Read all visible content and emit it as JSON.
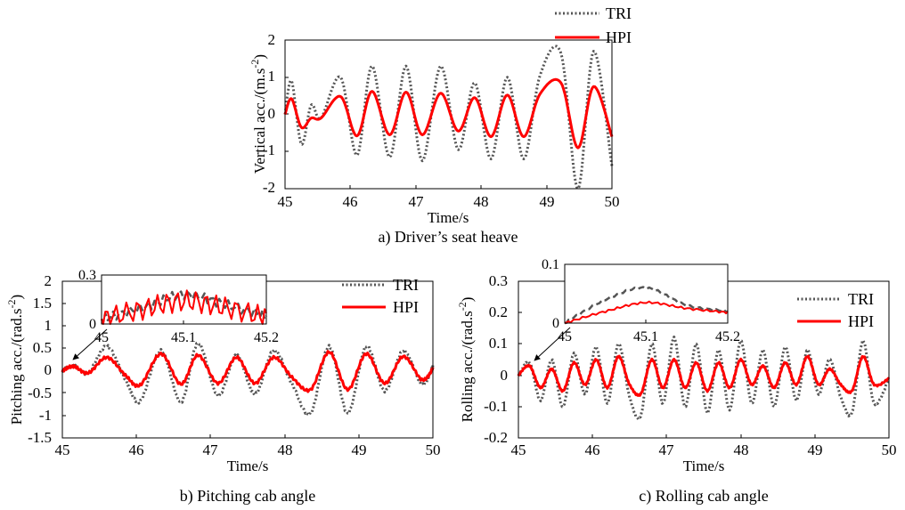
{
  "charts": [
    {
      "type": "line",
      "caption": "a) Driver’s seat heave",
      "xlabel": "Time/s",
      "ylabel": "Vertical acc./(m.s",
      "ylabel_sup": "-2",
      "ylabel_end": ")",
      "xlim": [
        45,
        50
      ],
      "ylim": [
        -2,
        2
      ],
      "xticks": [
        "45",
        "46",
        "47",
        "48",
        "49",
        "50"
      ],
      "yticks": [
        "-2",
        "-1",
        "0",
        "1",
        "2"
      ],
      "legend": [
        "TRI",
        "HPI"
      ],
      "legend_position": "above-top-right"
    },
    {
      "type": "line",
      "caption": "b) Pitching cab angle",
      "xlabel": "Time/s",
      "ylabel": "Pitching acc./(rad.s",
      "ylabel_sup": "-2",
      "ylabel_end": ")",
      "xlim": [
        45,
        50
      ],
      "ylim": [
        -1.5,
        2
      ],
      "xticks": [
        "45",
        "46",
        "47",
        "48",
        "49",
        "50"
      ],
      "yticks": [
        "-1.5",
        "-1",
        "-0.5",
        "0",
        "0.5",
        "1",
        "1.5",
        "2"
      ],
      "legend": [
        "TRI",
        "HPI"
      ],
      "legend_position": "top-right",
      "inset": {
        "xlim": [
          45,
          45.2
        ],
        "ylim": [
          0,
          0.3
        ],
        "xticks": [
          "45",
          "45.1",
          "45.2"
        ],
        "yticks": [
          "0",
          "0.3"
        ]
      }
    },
    {
      "type": "line",
      "caption": "c) Rolling cab angle",
      "xlabel": "Time/s",
      "ylabel": "Rolling acc./(rad.s",
      "ylabel_sup": "-2",
      "ylabel_end": ")",
      "xlim": [
        45,
        50
      ],
      "ylim": [
        -0.2,
        0.3
      ],
      "xticks": [
        "45",
        "46",
        "47",
        "48",
        "49",
        "50"
      ],
      "yticks": [
        "-0.2",
        "-0.1",
        "0",
        "0.1",
        "0.2",
        "0.3"
      ],
      "legend": [
        "TRI",
        "HPI"
      ],
      "legend_position": "top-right",
      "inset": {
        "xlim": [
          45,
          45.2
        ],
        "ylim": [
          0,
          0.1
        ],
        "xticks": [
          "45",
          "45.1",
          "45.2"
        ],
        "yticks": [
          "0",
          "0.1"
        ]
      }
    }
  ],
  "colors": {
    "tri": "#555555",
    "hpi": "#ff0000"
  },
  "chart_data": [
    {
      "type": "line",
      "title": "a) Driver’s seat heave",
      "xlabel": "Time/s",
      "ylabel": "Vertical acc./(m.s-2)",
      "xlim": [
        45,
        50
      ],
      "ylim": [
        -2,
        2
      ],
      "series": [
        {
          "name": "TRI",
          "style": "dotted",
          "x": [
            45.0,
            45.1,
            45.25,
            45.4,
            45.55,
            45.85,
            46.1,
            46.33,
            46.6,
            46.85,
            47.1,
            47.38,
            47.65,
            47.9,
            48.15,
            48.4,
            48.65,
            48.9,
            49.22,
            49.48,
            49.72,
            50.0
          ],
          "y": [
            0.0,
            0.9,
            -0.8,
            0.25,
            -0.1,
            1.0,
            -1.1,
            1.3,
            -1.15,
            1.3,
            -1.25,
            1.3,
            -0.95,
            0.85,
            -1.2,
            1.0,
            -1.2,
            1.05,
            1.65,
            -2.0,
            1.7,
            -1.4
          ]
        },
        {
          "name": "HPI",
          "style": "solid",
          "x": [
            45.0,
            45.1,
            45.25,
            45.4,
            45.55,
            45.85,
            46.1,
            46.33,
            46.6,
            46.85,
            47.1,
            47.38,
            47.65,
            47.9,
            48.15,
            48.4,
            48.65,
            48.9,
            49.22,
            49.48,
            49.72,
            50.0
          ],
          "y": [
            0.0,
            0.42,
            -0.35,
            -0.1,
            -0.1,
            0.48,
            -0.58,
            0.62,
            -0.55,
            0.6,
            -0.55,
            0.57,
            -0.45,
            0.45,
            -0.6,
            0.52,
            -0.6,
            0.55,
            0.85,
            -0.9,
            0.75,
            -0.6
          ]
        }
      ]
    },
    {
      "type": "line",
      "title": "b) Pitching cab angle",
      "xlabel": "Time/s",
      "ylabel": "Pitching acc./(rad.s-2)",
      "xlim": [
        45,
        50
      ],
      "ylim": [
        -1.5,
        2
      ],
      "series": [
        {
          "name": "TRI",
          "style": "dotted",
          "x": [
            45.0,
            45.15,
            45.35,
            45.6,
            45.85,
            46.05,
            46.33,
            46.6,
            46.83,
            47.1,
            47.35,
            47.6,
            47.85,
            48.1,
            48.35,
            48.6,
            48.85,
            49.1,
            49.35,
            49.6,
            49.85,
            50.0
          ],
          "y": [
            0.0,
            0.12,
            -0.05,
            0.55,
            -0.2,
            -0.68,
            0.45,
            -0.7,
            0.62,
            -0.55,
            0.35,
            -0.52,
            0.45,
            -0.3,
            -0.95,
            0.55,
            -0.95,
            0.55,
            -0.45,
            0.45,
            -0.3,
            0.1
          ]
        },
        {
          "name": "HPI",
          "style": "solid",
          "x": [
            45.0,
            45.15,
            45.35,
            45.6,
            45.85,
            46.05,
            46.33,
            46.6,
            46.83,
            47.1,
            47.35,
            47.6,
            47.85,
            48.1,
            48.35,
            48.6,
            48.85,
            49.1,
            49.35,
            49.6,
            49.85,
            50.0
          ],
          "y": [
            0.0,
            0.1,
            -0.05,
            0.3,
            -0.1,
            -0.32,
            0.38,
            -0.3,
            0.35,
            -0.28,
            0.3,
            -0.28,
            0.3,
            -0.15,
            -0.42,
            0.42,
            -0.42,
            0.38,
            -0.28,
            0.32,
            -0.2,
            0.05
          ]
        }
      ]
    },
    {
      "type": "line",
      "title": "c) Rolling cab angle",
      "xlabel": "Time/s",
      "ylabel": "Rolling acc./(rad.s-2)",
      "xlim": [
        45,
        50
      ],
      "ylim": [
        -0.2,
        0.3
      ],
      "series": [
        {
          "name": "TRI",
          "style": "dotted",
          "x": [
            45.0,
            45.15,
            45.3,
            45.45,
            45.6,
            45.75,
            45.9,
            46.05,
            46.2,
            46.35,
            46.5,
            46.65,
            46.8,
            46.95,
            47.1,
            47.25,
            47.4,
            47.55,
            47.7,
            47.85,
            48.0,
            48.15,
            48.3,
            48.45,
            48.6,
            48.75,
            48.9,
            49.05,
            49.2,
            49.35,
            49.5,
            49.65,
            49.8,
            50.0
          ],
          "y": [
            0.0,
            0.04,
            -0.08,
            0.05,
            -0.1,
            0.07,
            -0.06,
            0.09,
            -0.09,
            0.1,
            -0.07,
            -0.13,
            0.1,
            -0.09,
            0.12,
            -0.1,
            0.1,
            -0.12,
            0.08,
            -0.11,
            0.11,
            -0.09,
            0.08,
            -0.1,
            0.09,
            -0.08,
            0.08,
            -0.06,
            0.05,
            -0.07,
            -0.12,
            0.11,
            -0.09,
            -0.01
          ]
        },
        {
          "name": "HPI",
          "style": "solid",
          "x": [
            45.0,
            45.15,
            45.3,
            45.45,
            45.6,
            45.75,
            45.9,
            46.05,
            46.2,
            46.35,
            46.5,
            46.65,
            46.8,
            46.95,
            47.1,
            47.25,
            47.4,
            47.55,
            47.7,
            47.85,
            48.0,
            48.15,
            48.3,
            48.45,
            48.6,
            48.75,
            48.9,
            49.05,
            49.2,
            49.35,
            49.5,
            49.65,
            49.8,
            50.0
          ],
          "y": [
            0.0,
            0.03,
            -0.04,
            0.02,
            -0.05,
            0.04,
            -0.03,
            0.05,
            -0.04,
            0.06,
            -0.03,
            -0.06,
            0.05,
            -0.04,
            0.05,
            -0.04,
            0.04,
            -0.05,
            0.04,
            -0.04,
            0.05,
            -0.03,
            0.03,
            -0.04,
            0.04,
            -0.03,
            0.06,
            -0.03,
            0.02,
            -0.03,
            -0.05,
            0.06,
            -0.03,
            -0.01
          ]
        }
      ]
    },
    {
      "type": "line",
      "title": "",
      "xlim": [
        45,
        45.2
      ],
      "ylim": [
        0,
        0.3
      ],
      "series": [
        {
          "name": "TRI",
          "style": "dashed",
          "x": [
            45.0,
            45.05,
            45.1,
            45.15,
            45.2
          ],
          "y": [
            0.03,
            0.1,
            0.18,
            0.12,
            0.05
          ]
        },
        {
          "name": "HPI",
          "style": "solid",
          "x": [
            45.0,
            45.05,
            45.1,
            45.15,
            45.2
          ],
          "y": [
            0.03,
            0.09,
            0.14,
            0.1,
            0.04
          ]
        }
      ]
    },
    {
      "type": "line",
      "title": "",
      "xlim": [
        45,
        45.2
      ],
      "ylim": [
        0,
        0.1
      ],
      "series": [
        {
          "name": "TRI",
          "style": "dashed",
          "x": [
            45.0,
            45.05,
            45.1,
            45.15,
            45.2
          ],
          "y": [
            0.0,
            0.04,
            0.06,
            0.03,
            0.02
          ]
        },
        {
          "name": "HPI",
          "style": "solid",
          "x": [
            45.0,
            45.05,
            45.1,
            45.15,
            45.2
          ],
          "y": [
            0.0,
            0.02,
            0.035,
            0.025,
            0.018
          ]
        }
      ]
    }
  ]
}
